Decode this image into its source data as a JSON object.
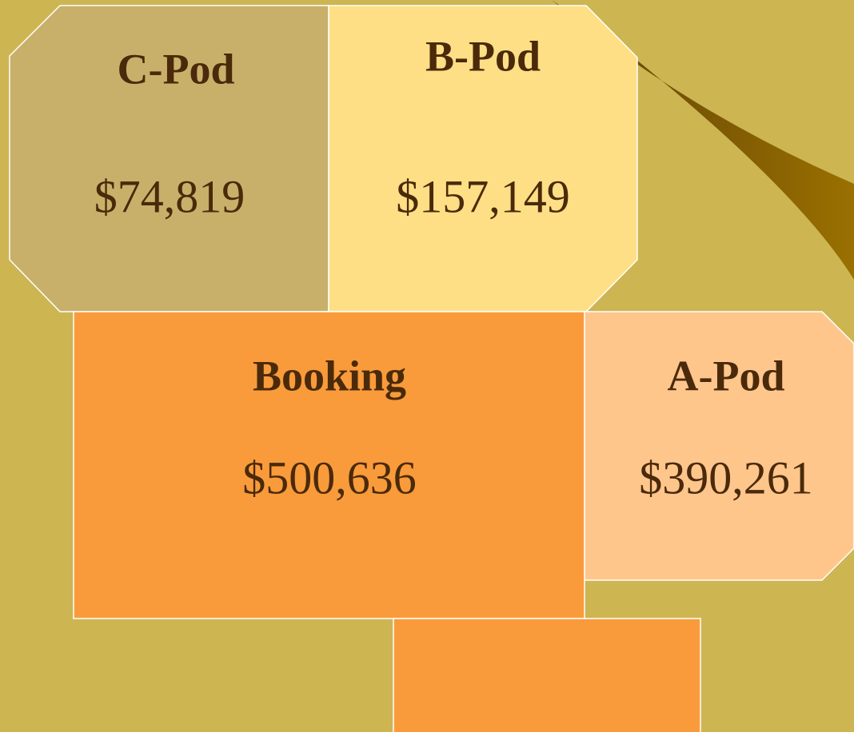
{
  "boxes": [
    {
      "label": "C-Pod",
      "amount": "$74,819"
    },
    {
      "label": "B-Pod",
      "amount": "$157,149"
    },
    {
      "label": "Booking",
      "amount": "$500,636"
    },
    {
      "label": "A-Pod",
      "amount": "$390,261"
    }
  ]
}
